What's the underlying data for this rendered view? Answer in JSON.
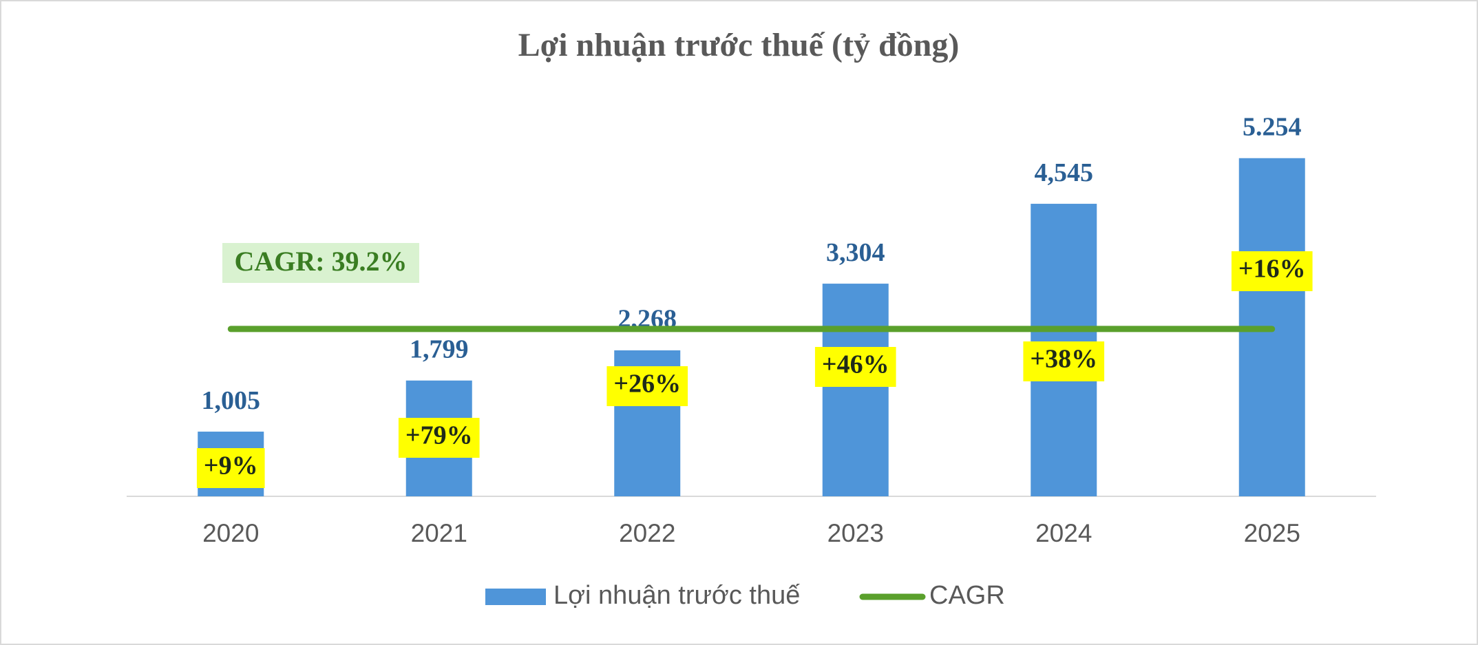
{
  "chart_data": {
    "type": "bar",
    "title": "Lợi nhuận trước thuế (tỷ đồng)",
    "categories": [
      "2020",
      "2021",
      "2022",
      "2023",
      "2024",
      "2025"
    ],
    "series": [
      {
        "name": "Lợi nhuận trước thuế",
        "color": "#4f95d9",
        "values": [
          1005,
          1799,
          2268,
          3304,
          4545,
          5254
        ],
        "value_labels": [
          "1,005",
          "1,799",
          "2,268",
          "3,304",
          "4,545",
          "5.254"
        ]
      },
      {
        "name": "CAGR",
        "type": "line",
        "color": "#5aa02c",
        "values": [
          2600,
          2600,
          2600,
          2600,
          2600,
          2600
        ]
      }
    ],
    "growth_labels": [
      "+9%",
      "+79%",
      "+26%",
      "+46%",
      "+38%",
      "+16%"
    ],
    "cagr_label": "CAGR: 39.2%",
    "ylim": [
      0,
      6000
    ],
    "grid": false,
    "legend": "bottom"
  }
}
